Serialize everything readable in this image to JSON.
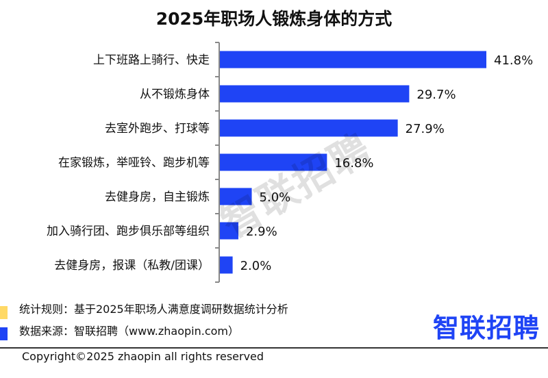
{
  "chart_data": {
    "type": "bar",
    "orientation": "horizontal",
    "title": "2025年职场人锻炼身体的方式",
    "categories": [
      "上下班路上骑行、快走",
      "从不锻炼身体",
      "去室外跑步、打球等",
      "在家锻炼，举哑铃、跑步机等",
      "去健身房，自主锻炼",
      "加入骑行团、跑步俱乐部等组织",
      "去健身房，报课（私教/团课）"
    ],
    "values": [
      41.8,
      29.7,
      27.9,
      16.8,
      5.0,
      2.9,
      2.0
    ],
    "data_labels": [
      "41.8%",
      "29.7%",
      "27.9%",
      "16.8%",
      "5.0%",
      "2.9%",
      "2.0%"
    ],
    "unit": "%",
    "bar_color": "#1f44f5",
    "grid": false
  },
  "watermark": "智联招聘",
  "legend": [
    {
      "text": "统计规则：基于2025年职场人满意度调研数据统计分析",
      "color": "#ffd966"
    },
    {
      "text": "数据来源：智联招聘（www.zhaopin.com）",
      "color": "#1f44f5"
    }
  ],
  "logo": "智联招聘",
  "copyright": "Copyright©2025 zhaopin all rights reserved"
}
